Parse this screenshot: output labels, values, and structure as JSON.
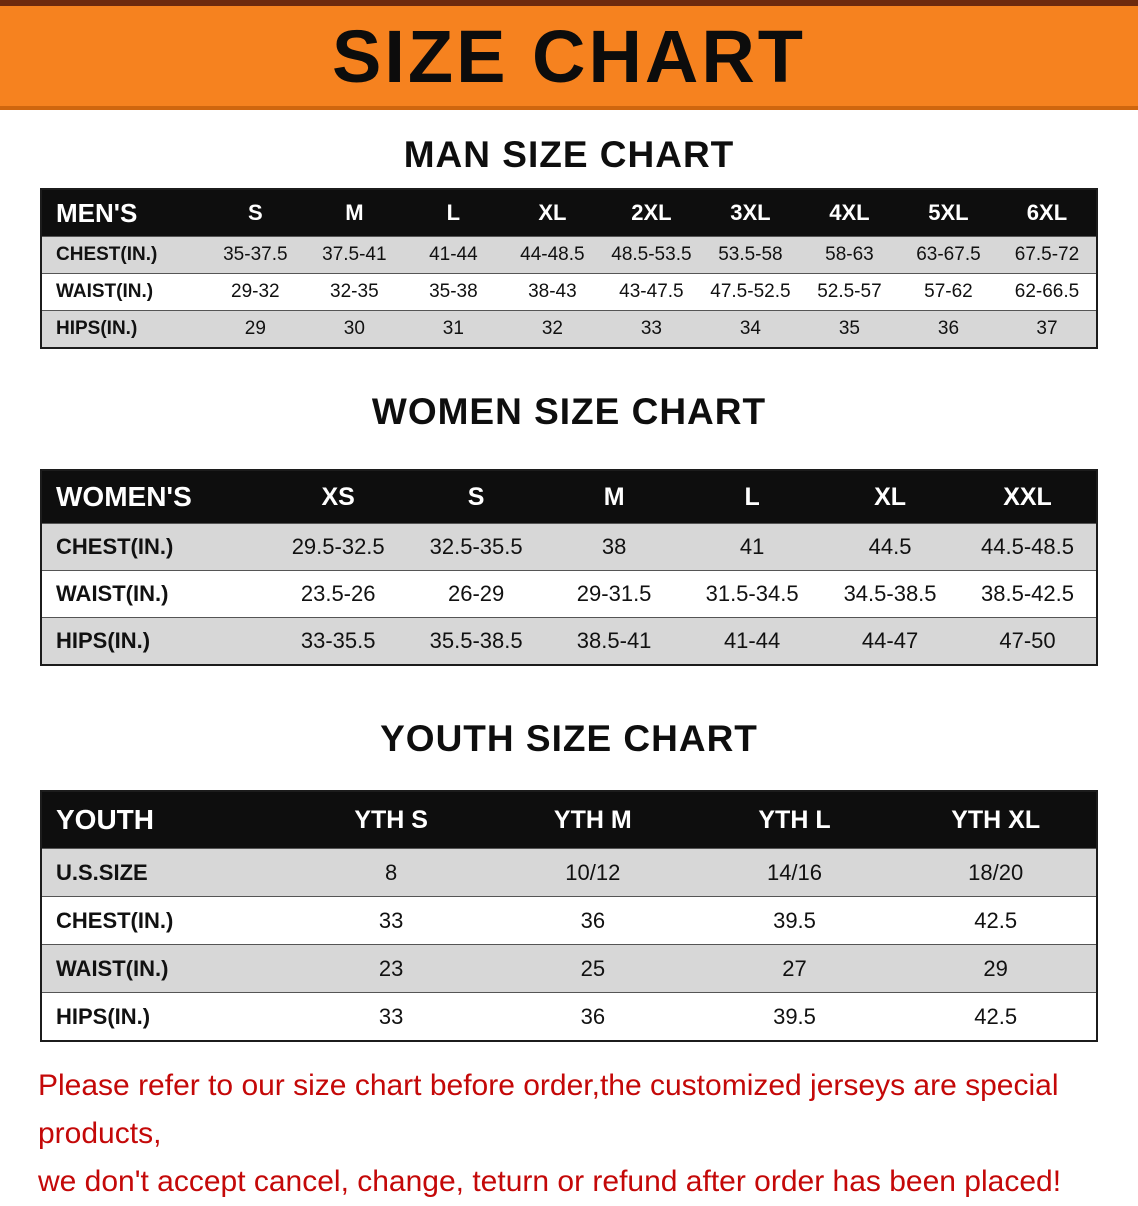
{
  "banner": {
    "title": "SIZE CHART",
    "bg_color": "#f6821f",
    "text_color": "#0c0c0c"
  },
  "tables": [
    {
      "title": "MAN SIZE CHART",
      "header": [
        "MEN'S",
        "S",
        "M",
        "L",
        "XL",
        "2XL",
        "3XL",
        "4XL",
        "5XL",
        "6XL"
      ],
      "rows": [
        [
          "CHEST(IN.)",
          "35-37.5",
          "37.5-41",
          "41-44",
          "44-48.5",
          "48.5-53.5",
          "53.5-58",
          "58-63",
          "63-67.5",
          "67.5-72"
        ],
        [
          "WAIST(IN.)",
          "29-32",
          "32-35",
          "35-38",
          "38-43",
          "43-47.5",
          "47.5-52.5",
          "52.5-57",
          "57-62",
          "62-66.5"
        ],
        [
          "HIPS(IN.)",
          "29",
          "30",
          "31",
          "32",
          "33",
          "34",
          "35",
          "36",
          "37"
        ]
      ]
    },
    {
      "title": "WOMEN SIZE CHART",
      "header": [
        "WOMEN'S",
        "XS",
        "S",
        "M",
        "L",
        "XL",
        "XXL"
      ],
      "rows": [
        [
          "CHEST(IN.)",
          "29.5-32.5",
          "32.5-35.5",
          "38",
          "41",
          "44.5",
          "44.5-48.5"
        ],
        [
          "WAIST(IN.)",
          "23.5-26",
          "26-29",
          "29-31.5",
          "31.5-34.5",
          "34.5-38.5",
          "38.5-42.5"
        ],
        [
          "HIPS(IN.)",
          "33-35.5",
          "35.5-38.5",
          "38.5-41",
          "41-44",
          "44-47",
          "47-50"
        ]
      ]
    },
    {
      "title": "YOUTH SIZE CHART",
      "header": [
        "YOUTH",
        "YTH S",
        "YTH M",
        "YTH L",
        "YTH XL"
      ],
      "rows": [
        [
          "U.S.SIZE",
          "8",
          "10/12",
          "14/16",
          "18/20"
        ],
        [
          "CHEST(IN.)",
          "33",
          "36",
          "39.5",
          "42.5"
        ],
        [
          "WAIST(IN.)",
          "23",
          "25",
          "27",
          "29"
        ],
        [
          "HIPS(IN.)",
          "33",
          "36",
          "39.5",
          "42.5"
        ]
      ]
    }
  ],
  "footer": {
    "line1": "Please refer to our size chart before order,the customized jerseys are special products,",
    "line2": "we don't accept cancel, change, teturn or refund after order has been placed!",
    "text_color": "#c40808"
  }
}
